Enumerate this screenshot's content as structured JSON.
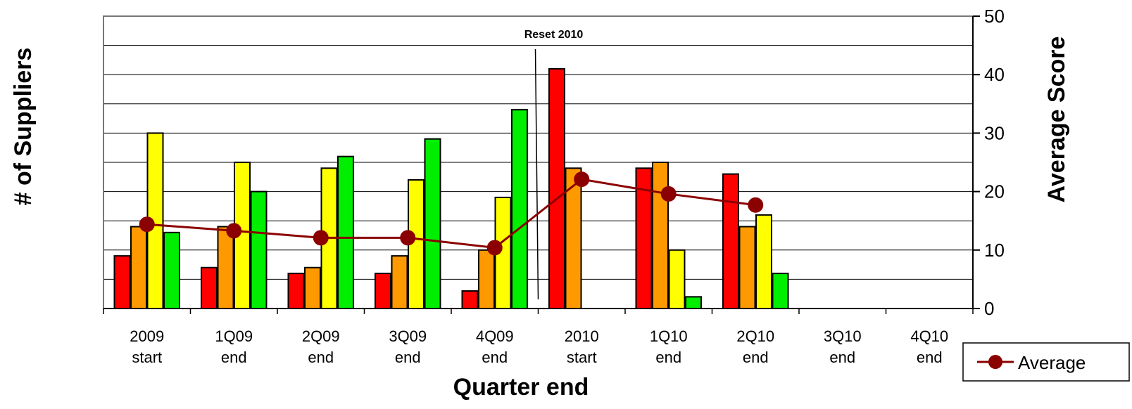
{
  "chart_data": {
    "type": "bar",
    "categories": [
      [
        "2009",
        "start"
      ],
      [
        "1Q09",
        "end"
      ],
      [
        "2Q09",
        "end"
      ],
      [
        "3Q09",
        "end"
      ],
      [
        "4Q09",
        "end"
      ],
      [
        "2010",
        "start"
      ],
      [
        "1Q10",
        "end"
      ],
      [
        "2Q10",
        "end"
      ],
      [
        "3Q10",
        "end"
      ],
      [
        "4Q10",
        "end"
      ]
    ],
    "series": [
      {
        "color": "#ff0000",
        "values": [
          9,
          7,
          6,
          6,
          3,
          41,
          24,
          23,
          null,
          null
        ]
      },
      {
        "color": "#ff9900",
        "values": [
          14,
          14,
          7,
          9,
          10,
          24,
          25,
          14,
          null,
          null
        ]
      },
      {
        "color": "#ffff00",
        "values": [
          30,
          25,
          24,
          22,
          19,
          null,
          10,
          16,
          null,
          null
        ]
      },
      {
        "color": "#00ee00",
        "values": [
          13,
          20,
          26,
          29,
          34,
          null,
          2,
          6,
          null,
          null
        ]
      }
    ],
    "line_series": {
      "name": "Average",
      "color": "#8b0000",
      "axis": "right",
      "values": [
        14.4,
        13.3,
        12.1,
        12.1,
        10.4,
        22.1,
        19.6,
        17.7,
        null,
        null
      ]
    },
    "xlabel": "Quarter end",
    "ylabel": "# of Suppliers",
    "y2label": "Average Score",
    "ylim": [
      0,
      50
    ],
    "y2lim": [
      0,
      50
    ],
    "y2ticks": [
      0,
      10,
      20,
      30,
      40,
      50
    ],
    "gridlines": [
      0,
      5,
      10,
      15,
      20,
      25,
      30,
      35,
      40,
      45,
      50
    ],
    "grid": true,
    "legend_position": "bottom-right",
    "annotation": {
      "text": "Reset 2010",
      "between": [
        "4Q09",
        "2010"
      ]
    }
  }
}
